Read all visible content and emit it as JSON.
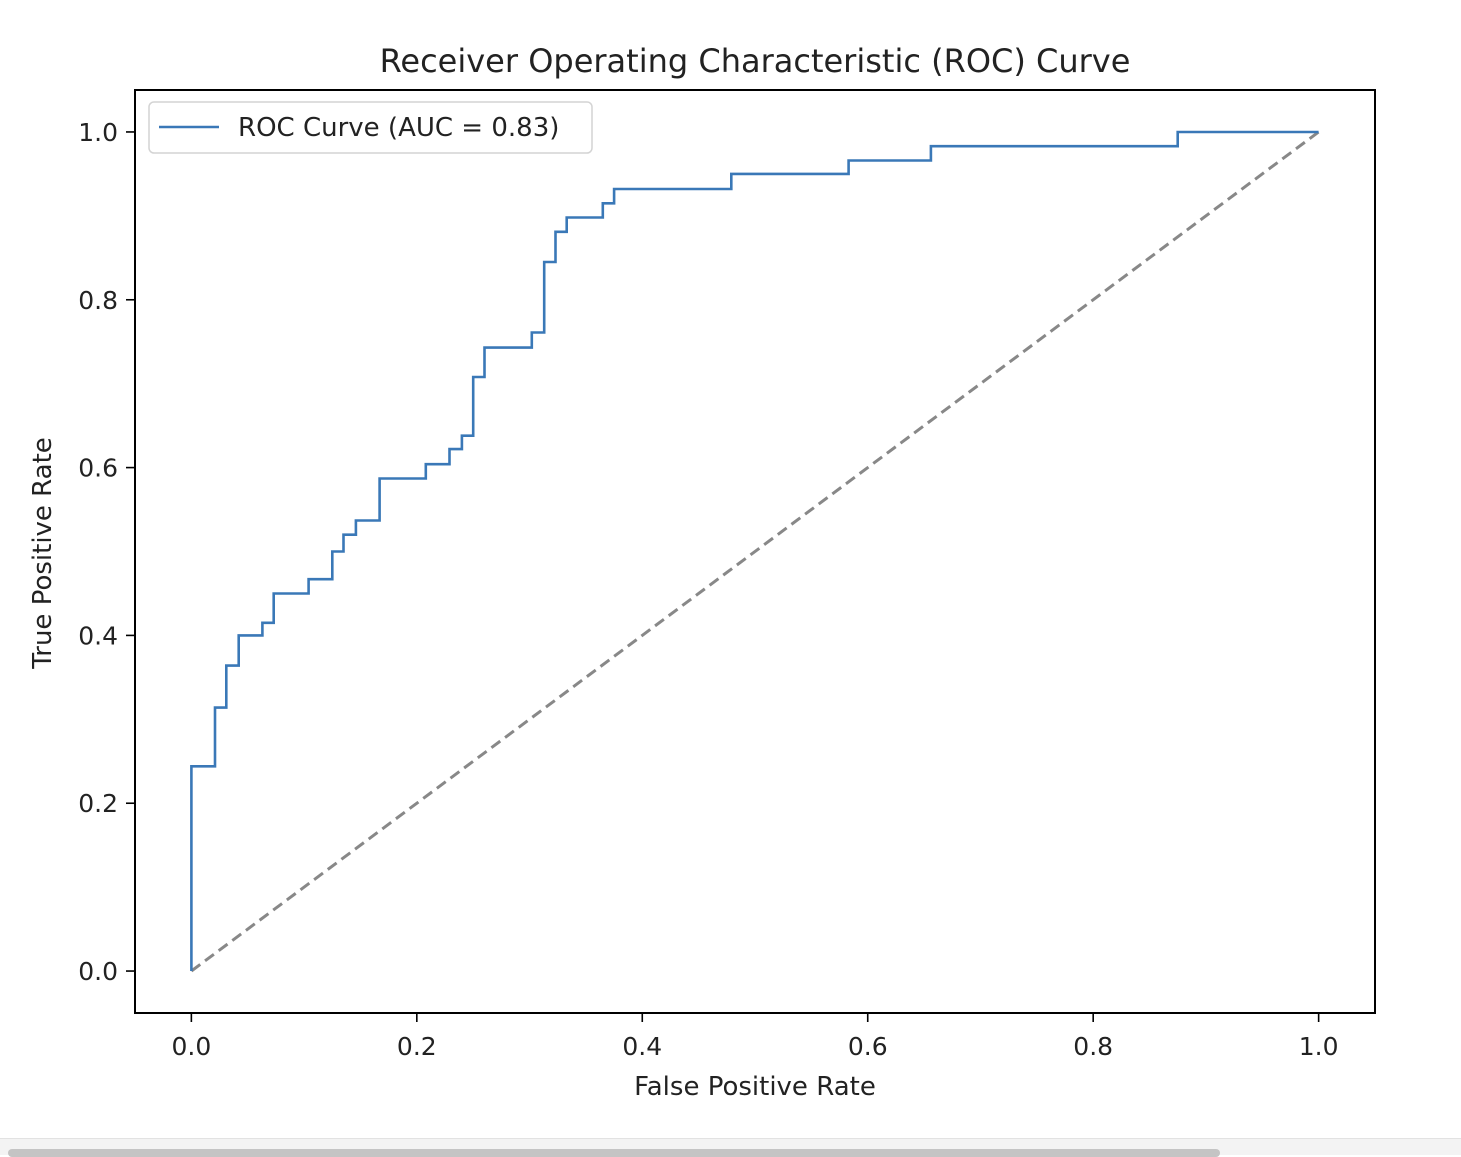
{
  "chart_data": {
    "type": "line",
    "title": "Receiver Operating Characteristic (ROC) Curve",
    "xlabel": "False Positive Rate",
    "ylabel": "True Positive Rate",
    "xlim": [
      -0.05,
      1.05
    ],
    "ylim": [
      -0.05,
      1.05
    ],
    "xticks": [
      0.0,
      0.2,
      0.4,
      0.6,
      0.8,
      1.0
    ],
    "xtick_labels": [
      "0.0",
      "0.2",
      "0.4",
      "0.6",
      "0.8",
      "1.0"
    ],
    "yticks": [
      0.0,
      0.2,
      0.4,
      0.6,
      0.8,
      1.0
    ],
    "ytick_labels": [
      "0.0",
      "0.2",
      "0.4",
      "0.6",
      "0.8",
      "1.0"
    ],
    "grid": false,
    "legend_position": "top-left",
    "series": [
      {
        "name": "ROC Curve (AUC = 0.83)",
        "color": "#3a78b7",
        "style": "solid",
        "x": [
          0.0,
          0.0,
          0.021,
          0.021,
          0.031,
          0.031,
          0.042,
          0.042,
          0.063,
          0.063,
          0.073,
          0.073,
          0.104,
          0.104,
          0.125,
          0.125,
          0.135,
          0.135,
          0.146,
          0.146,
          0.167,
          0.167,
          0.208,
          0.208,
          0.229,
          0.229,
          0.24,
          0.24,
          0.25,
          0.25,
          0.26,
          0.26,
          0.302,
          0.302,
          0.313,
          0.313,
          0.323,
          0.323,
          0.333,
          0.333,
          0.365,
          0.365,
          0.375,
          0.375,
          0.479,
          0.479,
          0.583,
          0.583,
          0.656,
          0.656,
          0.875,
          0.875,
          1.0
        ],
        "y": [
          0.0,
          0.244,
          0.244,
          0.314,
          0.314,
          0.364,
          0.364,
          0.4,
          0.4,
          0.415,
          0.415,
          0.45,
          0.45,
          0.467,
          0.467,
          0.5,
          0.5,
          0.52,
          0.52,
          0.537,
          0.537,
          0.587,
          0.587,
          0.604,
          0.604,
          0.622,
          0.622,
          0.638,
          0.638,
          0.708,
          0.708,
          0.743,
          0.743,
          0.761,
          0.761,
          0.845,
          0.845,
          0.881,
          0.881,
          0.898,
          0.898,
          0.915,
          0.915,
          0.932,
          0.932,
          0.95,
          0.95,
          0.966,
          0.966,
          0.983,
          0.983,
          1.0,
          1.0
        ]
      },
      {
        "name": "",
        "color": "#888888",
        "style": "dashed",
        "x": [
          0.0,
          1.0
        ],
        "y": [
          0.0,
          1.0
        ]
      }
    ]
  }
}
